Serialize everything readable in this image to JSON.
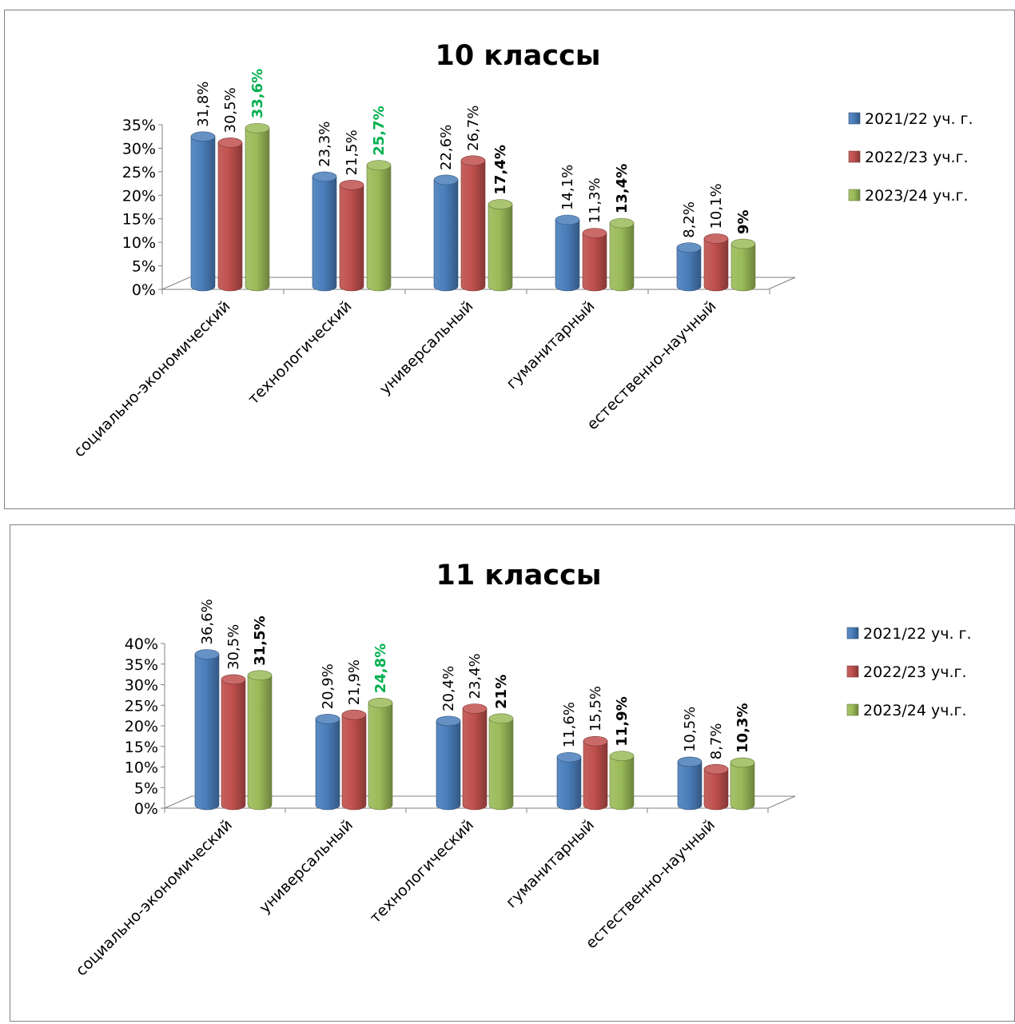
{
  "charts": [
    {
      "chart_data": {
        "type": "bar",
        "title": "10 классы",
        "categories": [
          "социально-экономический",
          "технологический",
          "универсальный",
          "гуманитарный",
          "естественно-научный"
        ],
        "series": [
          {
            "name": "2021/22 уч. г.",
            "values": [
              31.8,
              23.3,
              22.6,
              14.1,
              8.2
            ],
            "labels": [
              "31,8%",
              "23,3%",
              "22,6%",
              "14,1%",
              "8,2%"
            ]
          },
          {
            "name": "2022/23 уч.г.",
            "values": [
              30.5,
              21.5,
              26.7,
              11.3,
              10.1
            ],
            "labels": [
              "30,5%",
              "21,5%",
              "26,7%",
              "11,3%",
              "10,1%"
            ]
          },
          {
            "name": "2023/24 уч.г.",
            "values": [
              33.6,
              25.7,
              17.4,
              13.4,
              9
            ],
            "labels": [
              "33,6%",
              "25,7%",
              "17,4%",
              "13,4%",
              "9%"
            ],
            "label_colors": [
              "#00b050",
              "#00b050",
              "#000000",
              "#000000",
              "#000000"
            ]
          }
        ],
        "yticks": [
          "0%",
          "5%",
          "10%",
          "15%",
          "20%",
          "25%",
          "30%",
          "35%"
        ],
        "ylim": [
          0,
          35
        ],
        "legend_position": "right",
        "colors": [
          "#4a7ebb",
          "#c0504d",
          "#9bbb59"
        ]
      }
    },
    {
      "chart_data": {
        "type": "bar",
        "title": "11 классы",
        "categories": [
          "социально-экономический",
          "универсальный",
          "технологический",
          "гуманитарный",
          "естественно-научный"
        ],
        "series": [
          {
            "name": "2021/22 уч. г.",
            "values": [
              36.6,
              20.9,
              20.4,
              11.6,
              10.5
            ],
            "labels": [
              "36,6%",
              "20,9%",
              "20,4%",
              "11,6%",
              "10,5%"
            ]
          },
          {
            "name": "2022/23 уч.г.",
            "values": [
              30.5,
              21.9,
              23.4,
              15.5,
              8.7
            ],
            "labels": [
              "30,5%",
              "21,9%",
              "23,4%",
              "15,5%",
              "8,7%"
            ]
          },
          {
            "name": "2023/24 уч.г.",
            "values": [
              31.5,
              24.8,
              21,
              11.9,
              10.3
            ],
            "labels": [
              "31,5%",
              "24,8%",
              "21%",
              "11,9%",
              "10,3%"
            ],
            "label_colors": [
              "#000000",
              "#00b050",
              "#000000",
              "#000000",
              "#000000"
            ]
          }
        ],
        "yticks": [
          "0%",
          "5%",
          "10%",
          "15%",
          "20%",
          "25%",
          "30%",
          "35%",
          "40%"
        ],
        "ylim": [
          0,
          40
        ],
        "legend_position": "right",
        "colors": [
          "#4a7ebb",
          "#c0504d",
          "#9bbb59"
        ]
      }
    }
  ]
}
